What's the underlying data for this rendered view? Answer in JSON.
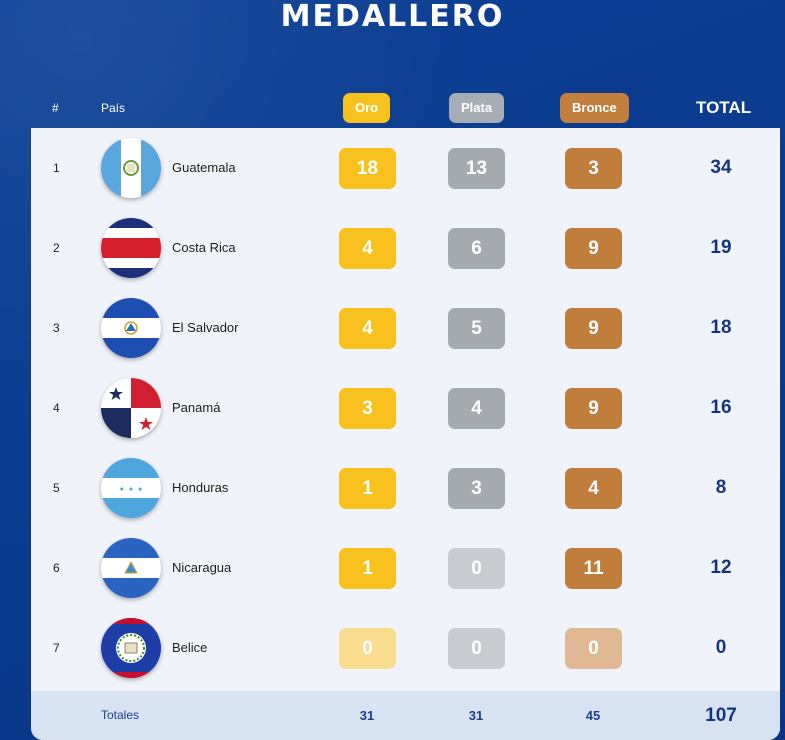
{
  "title": "MEDALLERO",
  "header": {
    "rank": "#",
    "country": "País",
    "gold": "Oro",
    "silver": "Plata",
    "bronze": "Bronce",
    "total": "TOTAL"
  },
  "colors": {
    "background": "#0a3a8c",
    "gold": "#f9c11d",
    "silver": "#a4aab0",
    "bronze": "#c17d3b",
    "total_text": "#16357d"
  },
  "rows": [
    {
      "rank": "1",
      "country": "Guatemala",
      "flag_icon": "guatemala-flag-icon",
      "gold": "18",
      "silver": "13",
      "bronze": "3",
      "total": "34"
    },
    {
      "rank": "2",
      "country": "Costa Rica",
      "flag_icon": "costa-rica-flag-icon",
      "gold": "4",
      "silver": "6",
      "bronze": "9",
      "total": "19"
    },
    {
      "rank": "3",
      "country": "El Salvador",
      "flag_icon": "el-salvador-flag-icon",
      "gold": "4",
      "silver": "5",
      "bronze": "9",
      "total": "18"
    },
    {
      "rank": "4",
      "country": "Panamá",
      "flag_icon": "panama-flag-icon",
      "gold": "3",
      "silver": "4",
      "bronze": "9",
      "total": "16"
    },
    {
      "rank": "5",
      "country": "Honduras",
      "flag_icon": "honduras-flag-icon",
      "gold": "1",
      "silver": "3",
      "bronze": "4",
      "total": "8"
    },
    {
      "rank": "6",
      "country": "Nicaragua",
      "flag_icon": "nicaragua-flag-icon",
      "gold": "1",
      "silver": "0",
      "bronze": "11",
      "total": "12"
    },
    {
      "rank": "7",
      "country": "Belice",
      "flag_icon": "belize-flag-icon",
      "gold": "0",
      "silver": "0",
      "bronze": "0",
      "total": "0"
    }
  ],
  "totals": {
    "label": "Totales",
    "gold": "31",
    "silver": "31",
    "bronze": "45",
    "total": "107"
  }
}
